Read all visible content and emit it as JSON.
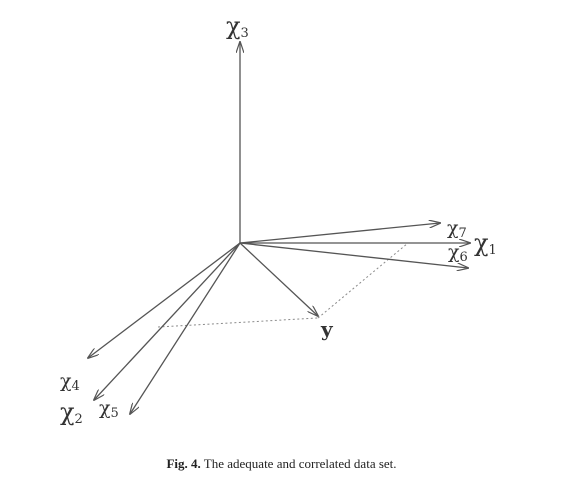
{
  "diagram": {
    "vectors": [
      {
        "id": "x1",
        "symbol": "χ",
        "subscript": "1"
      },
      {
        "id": "x2",
        "symbol": "χ",
        "subscript": "2"
      },
      {
        "id": "x3",
        "symbol": "χ",
        "subscript": "3"
      },
      {
        "id": "x4",
        "symbol": "χ",
        "subscript": "4"
      },
      {
        "id": "x5",
        "symbol": "χ",
        "subscript": "5"
      },
      {
        "id": "x6",
        "symbol": "χ",
        "subscript": "6"
      },
      {
        "id": "x7",
        "symbol": "χ",
        "subscript": "7"
      },
      {
        "id": "y",
        "symbol": "y",
        "subscript": ""
      }
    ]
  },
  "caption": {
    "label": "Fig. 4.",
    "text": " The adequate and correlated data set."
  },
  "colors": {
    "line": "#555555",
    "dotted": "#8a8a8a",
    "text": "#333333"
  }
}
